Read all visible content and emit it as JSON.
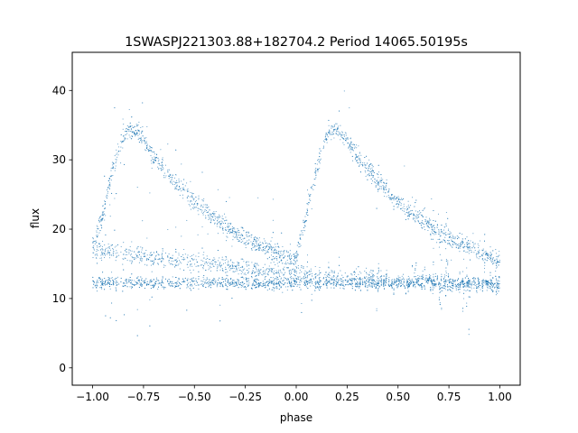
{
  "chart_data": {
    "type": "scatter",
    "title": "1SWASPJ221303.88+182704.2 Period 14065.50195s",
    "xlabel": "phase",
    "ylabel": "flux",
    "xlim": [
      -1.1,
      1.1
    ],
    "ylim": [
      -2.5,
      45.5
    ],
    "xticks": [
      -1.0,
      -0.75,
      -0.5,
      -0.25,
      0.0,
      0.25,
      0.5,
      0.75,
      1.0
    ],
    "xtick_labels": [
      "−1.00",
      "−0.75",
      "−0.50",
      "−0.25",
      "0.00",
      "0.25",
      "0.50",
      "0.75",
      "1.00"
    ],
    "yticks": [
      0,
      10,
      20,
      30,
      40
    ],
    "ytick_labels": [
      "0",
      "10",
      "20",
      "30",
      "40"
    ],
    "grid": false,
    "marker_color": "#1f77b4",
    "series": [
      {
        "description_points": "phase-folded light curve; x = phase (-1 to 1, two cycles), y = flux",
        "x": [
          -1.0,
          -0.95,
          -0.9,
          -0.85,
          -0.8,
          -0.75,
          -0.7,
          -0.6,
          -0.5,
          -0.4,
          -0.3,
          -0.2,
          -0.1,
          -0.05,
          0.0,
          0.05,
          0.1,
          0.15,
          0.2,
          0.25,
          0.3,
          0.4,
          0.5,
          0.6,
          0.7,
          0.8,
          0.9,
          0.95,
          1.0
        ],
        "y": [
          17.5,
          22.0,
          29.0,
          33.5,
          34.5,
          33.0,
          30.5,
          27.0,
          24.0,
          21.5,
          19.5,
          18.0,
          16.8,
          16.0,
          15.5,
          22.0,
          29.0,
          33.5,
          34.5,
          33.0,
          30.5,
          27.0,
          24.0,
          21.5,
          19.5,
          18.0,
          16.8,
          16.0,
          15.5
        ]
      },
      {
        "x": [
          -1.0,
          -0.5,
          0.0,
          0.5,
          1.0
        ],
        "y": [
          17.0,
          15.3,
          13.5,
          12.5,
          11.8
        ]
      },
      {
        "x": [
          -1.0,
          -0.5,
          0.0,
          0.5,
          1.0
        ],
        "y": [
          12.3,
          12.3,
          12.2,
          12.3,
          12.3
        ]
      }
    ]
  }
}
